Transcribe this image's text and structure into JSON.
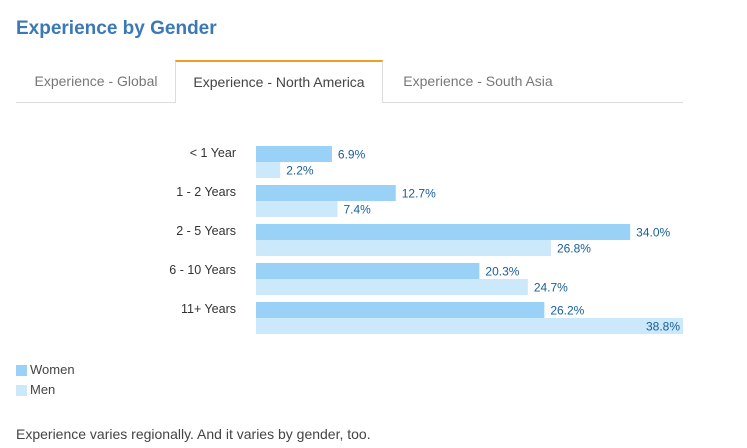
{
  "page": {
    "title": "Experience by Gender",
    "caption": "Experience varies regionally. And it varies by gender, too."
  },
  "tabs": [
    {
      "label": "Experience - Global",
      "active": false
    },
    {
      "label": "Experience - North America",
      "active": true
    },
    {
      "label": "Experience - South Asia",
      "active": false
    }
  ],
  "colors": {
    "women": "#99d1f7",
    "men": "#cce8fb",
    "value_label": "#1a5e9a",
    "active_tab_accent": "#f0a020"
  },
  "chart_data": {
    "type": "bar",
    "orientation": "horizontal",
    "categories": [
      "< 1 Year",
      "1 - 2 Years",
      "2 - 5 Years",
      "6 - 10 Years",
      "11+ Years"
    ],
    "series": [
      {
        "name": "Women",
        "values": [
          6.9,
          12.7,
          34.0,
          20.3,
          26.2
        ],
        "labels": [
          "6.9%",
          "12.7%",
          "34.0%",
          "20.3%",
          "26.2%"
        ]
      },
      {
        "name": "Men",
        "values": [
          2.2,
          7.4,
          26.8,
          24.7,
          38.8
        ],
        "labels": [
          "2.2%",
          "7.4%",
          "26.8%",
          "24.7%",
          "38.8%"
        ]
      }
    ],
    "xlim": [
      0,
      38.8
    ],
    "value_unit": "%",
    "grid": false,
    "legend": "bottom-left"
  }
}
